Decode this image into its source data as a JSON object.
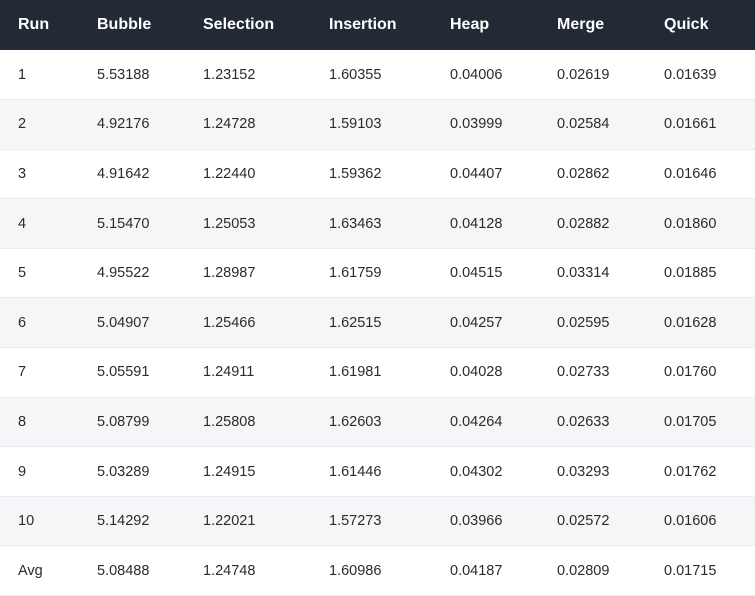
{
  "table": {
    "headers": [
      "Run",
      "Bubble",
      "Selection",
      "Insertion",
      "Heap",
      "Merge",
      "Quick"
    ],
    "rows": [
      [
        "1",
        "5.53188",
        "1.23152",
        "1.60355",
        "0.04006",
        "0.02619",
        "0.01639"
      ],
      [
        "2",
        "4.92176",
        "1.24728",
        "1.59103",
        "0.03999",
        "0.02584",
        "0.01661"
      ],
      [
        "3",
        "4.91642",
        "1.22440",
        "1.59362",
        "0.04407",
        "0.02862",
        "0.01646"
      ],
      [
        "4",
        "5.15470",
        "1.25053",
        "1.63463",
        "0.04128",
        "0.02882",
        "0.01860"
      ],
      [
        "5",
        "4.95522",
        "1.28987",
        "1.61759",
        "0.04515",
        "0.03314",
        "0.01885"
      ],
      [
        "6",
        "5.04907",
        "1.25466",
        "1.62515",
        "0.04257",
        "0.02595",
        "0.01628"
      ],
      [
        "7",
        "5.05591",
        "1.24911",
        "1.61981",
        "0.04028",
        "0.02733",
        "0.01760"
      ],
      [
        "8",
        "5.08799",
        "1.25808",
        "1.62603",
        "0.04264",
        "0.02633",
        "0.01705"
      ],
      [
        "9",
        "5.03289",
        "1.24915",
        "1.61446",
        "0.04302",
        "0.03293",
        "0.01762"
      ],
      [
        "10",
        "5.14292",
        "1.22021",
        "1.57273",
        "0.03966",
        "0.02572",
        "0.01606"
      ],
      [
        "Avg",
        "5.08488",
        "1.24748",
        "1.60986",
        "0.04187",
        "0.02809",
        "0.01715"
      ]
    ]
  },
  "colors": {
    "header_background": "#222a35",
    "header_text": "#ffffff",
    "stripe_background": "#f5f6f8",
    "cell_text": "#2b2b2b"
  }
}
